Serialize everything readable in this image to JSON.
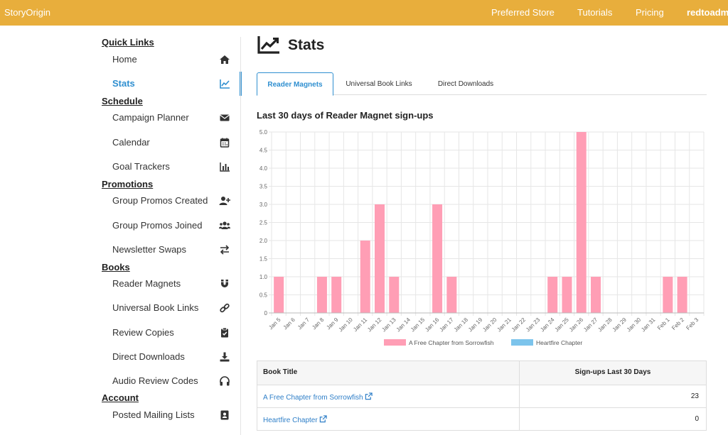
{
  "app": {
    "brand": "StoryOrigin"
  },
  "topnav": {
    "preferred_store": "Preferred Store",
    "tutorials": "Tutorials",
    "pricing": "Pricing",
    "user": "redtoadme"
  },
  "sidebar": {
    "sections": {
      "quick_links": "Quick Links",
      "schedule": "Schedule",
      "promotions": "Promotions",
      "books": "Books",
      "account": "Account"
    },
    "items": {
      "home": {
        "label": "Home",
        "icon": "home-icon"
      },
      "stats": {
        "label": "Stats",
        "icon": "chart-line-icon"
      },
      "campaign_planner": {
        "label": "Campaign Planner",
        "icon": "envelope-icon"
      },
      "calendar": {
        "label": "Calendar",
        "icon": "calendar-icon"
      },
      "goal_trackers": {
        "label": "Goal Trackers",
        "icon": "bar-chart-icon"
      },
      "group_promos_created": {
        "label": "Group Promos Created",
        "icon": "user-plus-icon"
      },
      "group_promos_joined": {
        "label": "Group Promos Joined",
        "icon": "users-icon"
      },
      "newsletter_swaps": {
        "label": "Newsletter Swaps",
        "icon": "exchange-icon"
      },
      "reader_magnets": {
        "label": "Reader Magnets",
        "icon": "magnet-icon"
      },
      "universal_book_links": {
        "label": "Universal Book Links",
        "icon": "link-icon"
      },
      "review_copies": {
        "label": "Review Copies",
        "icon": "clipboard-check-icon"
      },
      "direct_downloads": {
        "label": "Direct Downloads",
        "icon": "download-icon"
      },
      "audio_review_codes": {
        "label": "Audio Review Codes",
        "icon": "headphones-icon"
      },
      "posted_mailing_lists": {
        "label": "Posted Mailing Lists",
        "icon": "address-book-icon"
      }
    },
    "active_item": "stats"
  },
  "main": {
    "title": "Stats",
    "title_icon": "chart-line-icon",
    "tabs": [
      {
        "label": "Reader Magnets",
        "active": true
      },
      {
        "label": "Universal Book Links",
        "active": false
      },
      {
        "label": "Direct Downloads",
        "active": false
      }
    ],
    "chart_heading": "Last 30 days of Reader Magnet sign-ups"
  },
  "chart_data": {
    "type": "bar",
    "title": "",
    "xlabel": "",
    "ylabel": "",
    "ylim": [
      0,
      5
    ],
    "yticks": [
      "0",
      "0.5",
      "1.0",
      "1.5",
      "2.0",
      "2.5",
      "3.0",
      "3.5",
      "4.0",
      "4.5",
      "5.0"
    ],
    "grid": true,
    "legend_position": "bottom",
    "categories": [
      "Jan 5",
      "Jan 6",
      "Jan 7",
      "Jan 8",
      "Jan 9",
      "Jan 10",
      "Jan 11",
      "Jan 12",
      "Jan 13",
      "Jan 14",
      "Jan 15",
      "Jan 16",
      "Jan 17",
      "Jan 18",
      "Jan 19",
      "Jan 20",
      "Jan 21",
      "Jan 22",
      "Jan 23",
      "Jan 24",
      "Jan 25",
      "Jan 26",
      "Jan 27",
      "Jan 28",
      "Jan 29",
      "Jan 30",
      "Jan 31",
      "Feb 1",
      "Feb 2",
      "Feb 3"
    ],
    "series": [
      {
        "name": "A Free Chapter from Sorrowfish",
        "color": "#ff9eb5",
        "values": [
          1,
          0,
          0,
          1,
          1,
          0,
          2,
          3,
          1,
          0,
          0,
          3,
          1,
          0,
          0,
          0,
          0,
          0,
          0,
          1,
          1,
          5,
          1,
          0,
          0,
          0,
          0,
          1,
          1,
          0
        ]
      },
      {
        "name": "Heartfire Chapter",
        "color": "#7cc4ec",
        "values": [
          0,
          0,
          0,
          0,
          0,
          0,
          0,
          0,
          0,
          0,
          0,
          0,
          0,
          0,
          0,
          0,
          0,
          0,
          0,
          0,
          0,
          0,
          0,
          0,
          0,
          0,
          0,
          0,
          0,
          0
        ]
      }
    ]
  },
  "table": {
    "headers": {
      "title": "Book Title",
      "signups": "Sign-ups Last 30 Days"
    },
    "rows": [
      {
        "title": "A Free Chapter from Sorrowfish",
        "signups": "23"
      },
      {
        "title": "Heartfire Chapter",
        "signups": "0"
      }
    ]
  }
}
